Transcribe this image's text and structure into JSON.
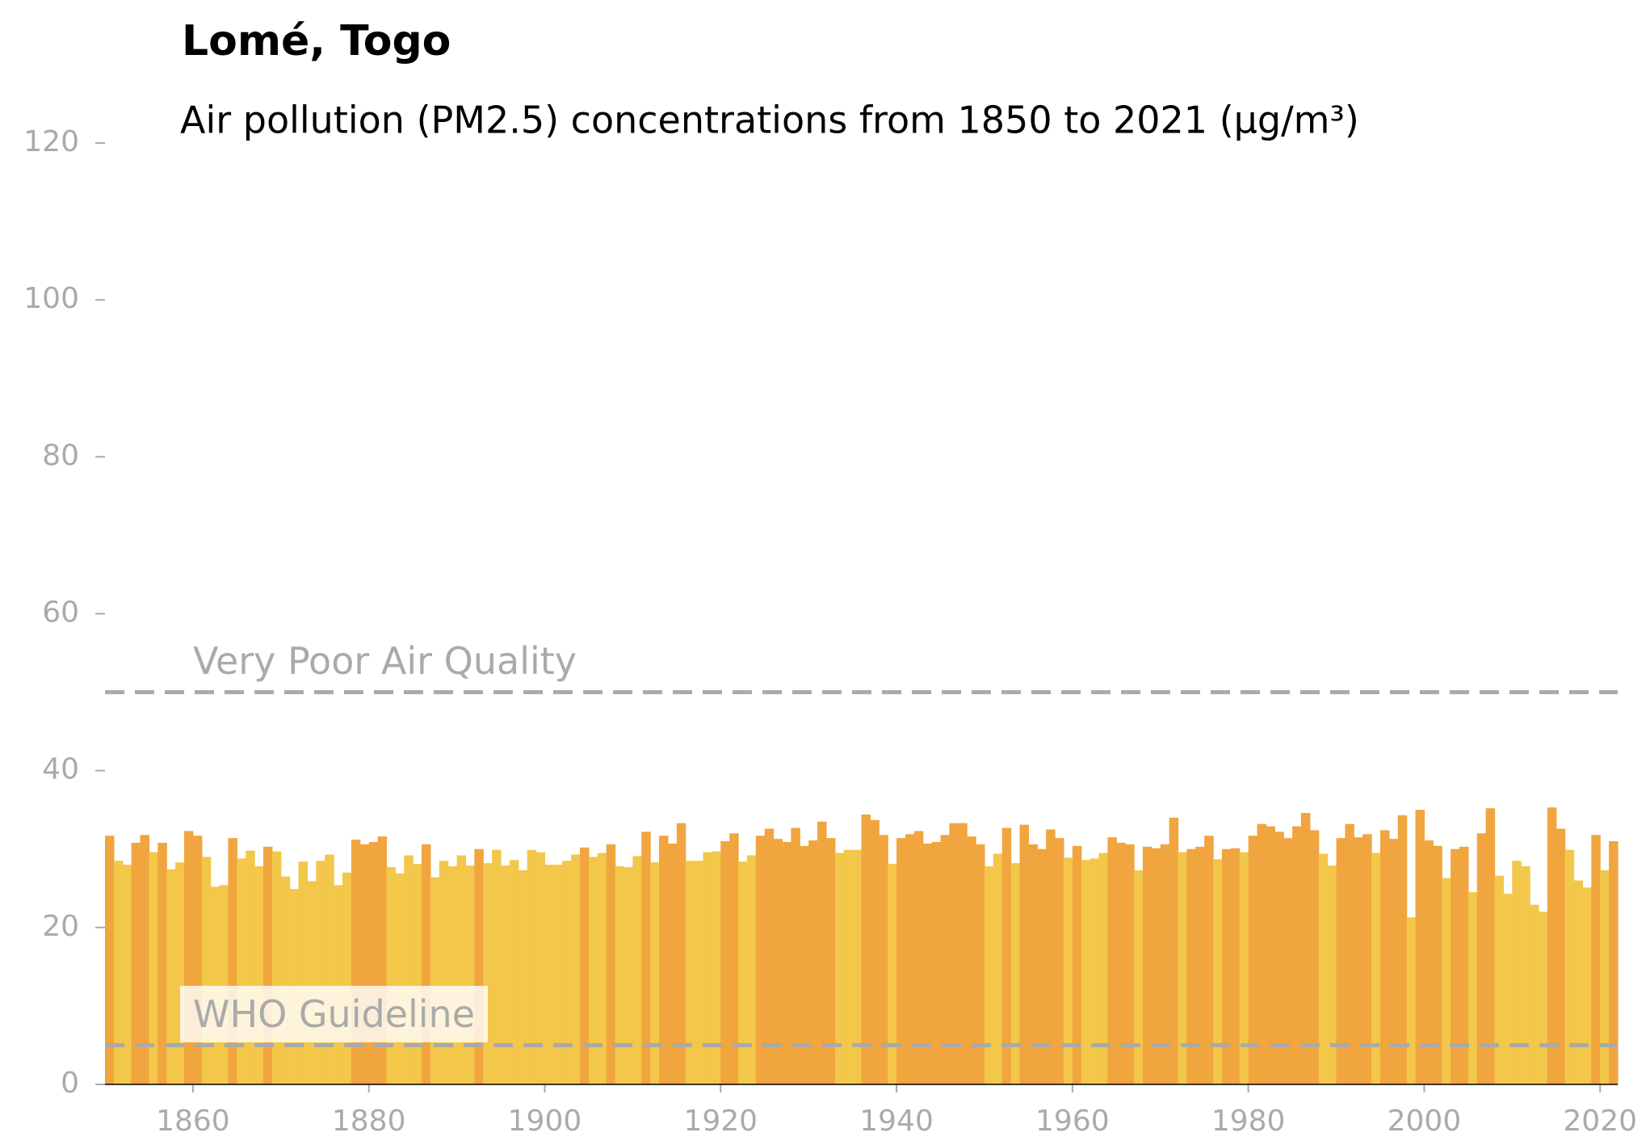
{
  "chart_data": {
    "type": "bar",
    "title": "Lomé, Togo",
    "subtitle": "Air pollution (PM2.5) concentrations from 1850 to 2021 (µg/m³)",
    "x_start": 1850,
    "values": [
      31.7,
      28.5,
      28.0,
      30.8,
      31.8,
      29.6,
      30.8,
      27.4,
      28.3,
      32.3,
      31.7,
      29.0,
      25.2,
      25.4,
      31.4,
      28.8,
      29.8,
      27.8,
      30.3,
      29.7,
      26.5,
      24.9,
      28.4,
      25.9,
      28.5,
      29.3,
      25.4,
      27.0,
      31.2,
      30.6,
      30.9,
      31.6,
      27.7,
      26.9,
      29.2,
      28.1,
      30.6,
      26.4,
      28.5,
      27.8,
      29.2,
      27.9,
      30.0,
      28.2,
      29.9,
      27.9,
      28.6,
      27.3,
      29.9,
      29.6,
      28.0,
      28.0,
      28.5,
      29.3,
      30.2,
      29.0,
      29.5,
      30.6,
      27.8,
      27.7,
      29.1,
      32.2,
      28.3,
      31.7,
      30.7,
      33.3,
      28.5,
      28.5,
      29.6,
      29.7,
      31.0,
      32.0,
      28.4,
      29.2,
      31.7,
      32.6,
      31.3,
      30.9,
      32.7,
      30.4,
      31.1,
      33.5,
      31.4,
      29.5,
      29.9,
      29.9,
      34.4,
      33.7,
      31.8,
      28.1,
      31.4,
      31.9,
      32.3,
      30.7,
      30.9,
      31.8,
      33.3,
      33.3,
      31.6,
      30.6,
      27.8,
      29.4,
      32.7,
      28.2,
      33.1,
      30.6,
      30.0,
      32.5,
      31.4,
      28.9,
      30.4,
      28.6,
      28.8,
      29.5,
      31.5,
      30.8,
      30.6,
      27.3,
      30.3,
      30.1,
      30.6,
      34.0,
      29.6,
      30.0,
      30.3,
      31.7,
      28.7,
      30.0,
      30.1,
      29.6,
      31.7,
      33.2,
      32.9,
      32.2,
      31.4,
      32.9,
      34.6,
      32.4,
      29.4,
      27.9,
      31.4,
      33.2,
      31.5,
      31.9,
      29.5,
      32.4,
      31.3,
      34.3,
      21.3,
      35.0,
      31.1,
      30.4,
      26.3,
      30.0,
      30.3,
      24.5,
      32.0,
      35.2,
      26.6,
      24.3,
      28.5,
      27.8,
      22.9,
      22.0,
      35.3,
      32.6,
      29.9,
      26.0,
      25.1,
      31.8,
      27.3,
      31.0
    ],
    "colors": [
      "#f0a53f",
      "#f2c74a",
      "#f2c74a",
      "#f0a53f",
      "#f0a53f",
      "#f2c74a",
      "#f0a53f",
      "#f2c74a",
      "#f2c74a",
      "#f0a53f",
      "#f0a53f",
      "#f2c74a",
      "#f2c74a",
      "#f2c74a",
      "#f0a53f",
      "#f2c74a",
      "#f2c74a",
      "#f2c74a",
      "#f0a53f",
      "#f2c74a",
      "#f2c74a",
      "#f2c74a",
      "#f2c74a",
      "#f2c74a",
      "#f2c74a",
      "#f2c74a",
      "#f2c74a",
      "#f2c74a",
      "#f0a53f",
      "#f0a53f",
      "#f0a53f",
      "#f0a53f",
      "#f2c74a",
      "#f2c74a",
      "#f2c74a",
      "#f2c74a",
      "#f0a53f",
      "#f2c74a",
      "#f2c74a",
      "#f2c74a",
      "#f2c74a",
      "#f2c74a",
      "#f0a53f",
      "#f2c74a",
      "#f2c74a",
      "#f2c74a",
      "#f2c74a",
      "#f2c74a",
      "#f2c74a",
      "#f2c74a",
      "#f2c74a",
      "#f2c74a",
      "#f2c74a",
      "#f2c74a",
      "#f0a53f",
      "#f2c74a",
      "#f2c74a",
      "#f0a53f",
      "#f2c74a",
      "#f2c74a",
      "#f2c74a",
      "#f0a53f",
      "#f2c74a",
      "#f0a53f",
      "#f0a53f",
      "#f0a53f",
      "#f2c74a",
      "#f2c74a",
      "#f2c74a",
      "#f2c74a",
      "#f0a53f",
      "#f0a53f",
      "#f2c74a",
      "#f2c74a",
      "#f0a53f",
      "#f0a53f",
      "#f0a53f",
      "#f0a53f",
      "#f0a53f",
      "#f0a53f",
      "#f0a53f",
      "#f0a53f",
      "#f0a53f",
      "#f2c74a",
      "#f2c74a",
      "#f2c74a",
      "#f0a53f",
      "#f0a53f",
      "#f0a53f",
      "#f2c74a",
      "#f0a53f",
      "#f0a53f",
      "#f0a53f",
      "#f0a53f",
      "#f0a53f",
      "#f0a53f",
      "#f0a53f",
      "#f0a53f",
      "#f0a53f",
      "#f0a53f",
      "#f2c74a",
      "#f2c74a",
      "#f0a53f",
      "#f2c74a",
      "#f0a53f",
      "#f0a53f",
      "#f0a53f",
      "#f0a53f",
      "#f0a53f",
      "#f2c74a",
      "#f0a53f",
      "#f2c74a",
      "#f2c74a",
      "#f2c74a",
      "#f0a53f",
      "#f0a53f",
      "#f0a53f",
      "#f2c74a",
      "#f0a53f",
      "#f0a53f",
      "#f0a53f",
      "#f0a53f",
      "#f2c74a",
      "#f0a53f",
      "#f0a53f",
      "#f0a53f",
      "#f2c74a",
      "#f0a53f",
      "#f0a53f",
      "#f2c74a",
      "#f0a53f",
      "#f0a53f",
      "#f0a53f",
      "#f0a53f",
      "#f0a53f",
      "#f0a53f",
      "#f0a53f",
      "#f0a53f",
      "#f2c74a",
      "#f2c74a",
      "#f0a53f",
      "#f0a53f",
      "#f0a53f",
      "#f0a53f",
      "#f2c74a",
      "#f0a53f",
      "#f0a53f",
      "#f0a53f",
      "#f2c74a",
      "#f0a53f",
      "#f0a53f",
      "#f0a53f",
      "#f2c74a",
      "#f0a53f",
      "#f0a53f",
      "#f2c74a",
      "#f0a53f",
      "#f0a53f",
      "#f2c74a",
      "#f2c74a",
      "#f2c74a",
      "#f2c74a",
      "#f2c74a",
      "#f2c74a",
      "#f0a53f",
      "#f0a53f",
      "#f2c74a",
      "#f2c74a",
      "#f2c74a",
      "#f0a53f",
      "#f2c74a",
      "#f0a53f"
    ],
    "xlim": [
      1850,
      2022
    ],
    "xticks": [
      1860,
      1880,
      1900,
      1920,
      1940,
      1960,
      1980,
      2000,
      2020
    ],
    "ylim": [
      0,
      120
    ],
    "yticks": [
      0,
      20,
      40,
      60,
      80,
      100,
      120
    ],
    "reference_lines": [
      {
        "label": "Very Poor Air Quality",
        "value": 50
      },
      {
        "label": "WHO Guideline",
        "value": 5
      }
    ],
    "reference_color": "#aaaaaa"
  }
}
